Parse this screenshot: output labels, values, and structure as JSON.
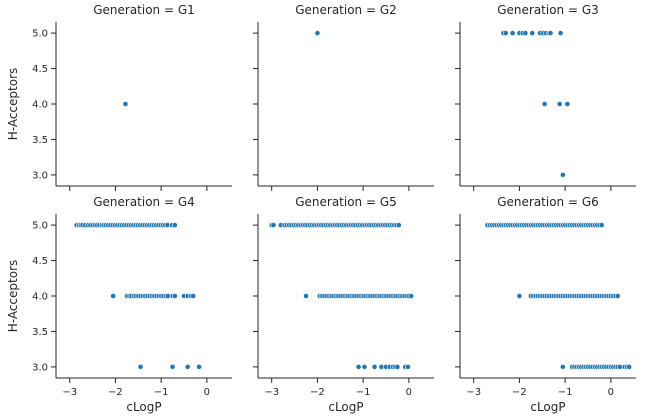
{
  "chart_data": {
    "type": "scatter",
    "layout": "facet-grid 2x3",
    "xlabel": "cLogP",
    "ylabel": "H-Acceptors",
    "xlim": [
      -3.3,
      0.55
    ],
    "ylim": [
      2.9,
      5.1
    ],
    "xticks": [
      -3,
      -2,
      -1,
      0
    ],
    "yticks": [
      3.0,
      3.5,
      4.0,
      4.5,
      5.0
    ],
    "xtick_labels": [
      "−3",
      "−2",
      "−1",
      "0"
    ],
    "ytick_labels": [
      "3.0",
      "3.5",
      "4.0",
      "4.5",
      "5.0"
    ],
    "grid": false,
    "marker_color": "#1f77b4",
    "panels": [
      {
        "title": "Generation = G1",
        "points": [
          [
            -1.78,
            4.0
          ]
        ]
      },
      {
        "title": "Generation = G2",
        "points": [
          [
            -2.0,
            5.0
          ]
        ]
      },
      {
        "title": "Generation = G3",
        "points": [
          [
            -2.35,
            5.0
          ],
          [
            -2.3,
            5.0
          ],
          [
            -2.15,
            5.0
          ],
          [
            -2.0,
            5.0
          ],
          [
            -1.93,
            5.0
          ],
          [
            -1.87,
            5.0
          ],
          [
            -1.72,
            5.0
          ],
          [
            -1.55,
            5.0
          ],
          [
            -1.48,
            5.0
          ],
          [
            -1.42,
            5.0
          ],
          [
            -1.35,
            5.0
          ],
          [
            -1.32,
            5.0
          ],
          [
            -1.1,
            5.0
          ],
          [
            -1.45,
            4.0
          ],
          [
            -1.12,
            4.0
          ],
          [
            -0.95,
            4.0
          ],
          [
            -1.05,
            3.0
          ]
        ]
      },
      {
        "title": "Generation = G4",
        "points": [
          [
            -2.85,
            5.0
          ],
          [
            -2.8,
            5.0
          ],
          [
            -2.76,
            5.0
          ],
          [
            -2.72,
            5.0
          ],
          [
            -2.66,
            5.0
          ],
          [
            -2.6,
            5.0
          ],
          [
            -2.55,
            5.0
          ],
          [
            -2.5,
            5.0
          ],
          [
            -2.45,
            5.0
          ],
          [
            -2.4,
            5.0
          ],
          [
            -2.35,
            5.0
          ],
          [
            -2.3,
            5.0
          ],
          [
            -2.26,
            5.0
          ],
          [
            -2.21,
            5.0
          ],
          [
            -2.16,
            5.0
          ],
          [
            -2.11,
            5.0
          ],
          [
            -2.06,
            5.0
          ],
          [
            -2.01,
            5.0
          ],
          [
            -1.96,
            5.0
          ],
          [
            -1.91,
            5.0
          ],
          [
            -1.86,
            5.0
          ],
          [
            -1.81,
            5.0
          ],
          [
            -1.76,
            5.0
          ],
          [
            -1.71,
            5.0
          ],
          [
            -1.66,
            5.0
          ],
          [
            -1.61,
            5.0
          ],
          [
            -1.56,
            5.0
          ],
          [
            -1.51,
            5.0
          ],
          [
            -1.46,
            5.0
          ],
          [
            -1.41,
            5.0
          ],
          [
            -1.36,
            5.0
          ],
          [
            -1.31,
            5.0
          ],
          [
            -1.26,
            5.0
          ],
          [
            -1.21,
            5.0
          ],
          [
            -1.16,
            5.0
          ],
          [
            -1.11,
            5.0
          ],
          [
            -1.06,
            5.0
          ],
          [
            -1.01,
            5.0
          ],
          [
            -0.96,
            5.0
          ],
          [
            -0.91,
            5.0
          ],
          [
            -0.86,
            5.0
          ],
          [
            -0.76,
            5.0
          ],
          [
            -0.7,
            5.0
          ],
          [
            -2.05,
            4.0
          ],
          [
            -1.75,
            4.0
          ],
          [
            -1.7,
            4.0
          ],
          [
            -1.66,
            4.0
          ],
          [
            -1.6,
            4.0
          ],
          [
            -1.55,
            4.0
          ],
          [
            -1.5,
            4.0
          ],
          [
            -1.45,
            4.0
          ],
          [
            -1.4,
            4.0
          ],
          [
            -1.35,
            4.0
          ],
          [
            -1.3,
            4.0
          ],
          [
            -1.25,
            4.0
          ],
          [
            -1.2,
            4.0
          ],
          [
            -1.15,
            4.0
          ],
          [
            -1.1,
            4.0
          ],
          [
            -1.05,
            4.0
          ],
          [
            -1.0,
            4.0
          ],
          [
            -0.95,
            4.0
          ],
          [
            -0.9,
            4.0
          ],
          [
            -0.85,
            4.0
          ],
          [
            -0.75,
            4.0
          ],
          [
            -0.7,
            4.0
          ],
          [
            -0.5,
            4.0
          ],
          [
            -0.42,
            4.0
          ],
          [
            -0.35,
            4.0
          ],
          [
            -0.3,
            4.0
          ],
          [
            -1.45,
            3.0
          ],
          [
            -0.75,
            3.0
          ],
          [
            -0.42,
            3.0
          ],
          [
            -0.17,
            3.0
          ]
        ]
      },
      {
        "title": "Generation = G5",
        "points": [
          [
            -3.0,
            5.0
          ],
          [
            -2.96,
            5.0
          ],
          [
            -2.8,
            5.0
          ],
          [
            -2.72,
            5.0
          ],
          [
            -2.67,
            5.0
          ],
          [
            -2.62,
            5.0
          ],
          [
            -2.57,
            5.0
          ],
          [
            -2.52,
            5.0
          ],
          [
            -2.47,
            5.0
          ],
          [
            -2.42,
            5.0
          ],
          [
            -2.37,
            5.0
          ],
          [
            -2.32,
            5.0
          ],
          [
            -2.27,
            5.0
          ],
          [
            -2.22,
            5.0
          ],
          [
            -2.17,
            5.0
          ],
          [
            -2.12,
            5.0
          ],
          [
            -2.07,
            5.0
          ],
          [
            -2.02,
            5.0
          ],
          [
            -1.97,
            5.0
          ],
          [
            -1.92,
            5.0
          ],
          [
            -1.87,
            5.0
          ],
          [
            -1.82,
            5.0
          ],
          [
            -1.77,
            5.0
          ],
          [
            -1.72,
            5.0
          ],
          [
            -1.67,
            5.0
          ],
          [
            -1.62,
            5.0
          ],
          [
            -1.57,
            5.0
          ],
          [
            -1.52,
            5.0
          ],
          [
            -1.47,
            5.0
          ],
          [
            -1.42,
            5.0
          ],
          [
            -1.37,
            5.0
          ],
          [
            -1.32,
            5.0
          ],
          [
            -1.27,
            5.0
          ],
          [
            -1.22,
            5.0
          ],
          [
            -1.17,
            5.0
          ],
          [
            -1.12,
            5.0
          ],
          [
            -1.07,
            5.0
          ],
          [
            -1.02,
            5.0
          ],
          [
            -0.97,
            5.0
          ],
          [
            -0.92,
            5.0
          ],
          [
            -0.87,
            5.0
          ],
          [
            -0.82,
            5.0
          ],
          [
            -0.77,
            5.0
          ],
          [
            -0.72,
            5.0
          ],
          [
            -0.67,
            5.0
          ],
          [
            -0.62,
            5.0
          ],
          [
            -0.57,
            5.0
          ],
          [
            -0.52,
            5.0
          ],
          [
            -0.47,
            5.0
          ],
          [
            -0.42,
            5.0
          ],
          [
            -0.37,
            5.0
          ],
          [
            -0.32,
            5.0
          ],
          [
            -0.27,
            5.0
          ],
          [
            -0.22,
            5.0
          ],
          [
            -2.25,
            4.0
          ],
          [
            -1.95,
            4.0
          ],
          [
            -1.9,
            4.0
          ],
          [
            -1.85,
            4.0
          ],
          [
            -1.8,
            4.0
          ],
          [
            -1.75,
            4.0
          ],
          [
            -1.7,
            4.0
          ],
          [
            -1.65,
            4.0
          ],
          [
            -1.6,
            4.0
          ],
          [
            -1.55,
            4.0
          ],
          [
            -1.5,
            4.0
          ],
          [
            -1.45,
            4.0
          ],
          [
            -1.4,
            4.0
          ],
          [
            -1.35,
            4.0
          ],
          [
            -1.3,
            4.0
          ],
          [
            -1.25,
            4.0
          ],
          [
            -1.2,
            4.0
          ],
          [
            -1.15,
            4.0
          ],
          [
            -1.1,
            4.0
          ],
          [
            -1.05,
            4.0
          ],
          [
            -1.0,
            4.0
          ],
          [
            -0.95,
            4.0
          ],
          [
            -0.9,
            4.0
          ],
          [
            -0.85,
            4.0
          ],
          [
            -0.8,
            4.0
          ],
          [
            -0.75,
            4.0
          ],
          [
            -0.7,
            4.0
          ],
          [
            -0.65,
            4.0
          ],
          [
            -0.6,
            4.0
          ],
          [
            -0.55,
            4.0
          ],
          [
            -0.5,
            4.0
          ],
          [
            -0.45,
            4.0
          ],
          [
            -0.4,
            4.0
          ],
          [
            -0.35,
            4.0
          ],
          [
            -0.3,
            4.0
          ],
          [
            -0.25,
            4.0
          ],
          [
            -0.2,
            4.0
          ],
          [
            -0.15,
            4.0
          ],
          [
            -0.1,
            4.0
          ],
          [
            -0.05,
            4.0
          ],
          [
            0.0,
            4.0
          ],
          [
            0.05,
            4.0
          ],
          [
            -1.1,
            3.0
          ],
          [
            -0.97,
            3.0
          ],
          [
            -0.75,
            3.0
          ],
          [
            -0.6,
            3.0
          ],
          [
            -0.5,
            3.0
          ],
          [
            -0.42,
            3.0
          ],
          [
            -0.35,
            3.0
          ],
          [
            -0.3,
            3.0
          ],
          [
            -0.25,
            3.0
          ],
          [
            -0.08,
            3.0
          ],
          [
            -0.02,
            3.0
          ]
        ]
      },
      {
        "title": "Generation = G6",
        "points": [
          [
            -2.7,
            5.0
          ],
          [
            -2.65,
            5.0
          ],
          [
            -2.6,
            5.0
          ],
          [
            -2.55,
            5.0
          ],
          [
            -2.5,
            5.0
          ],
          [
            -2.45,
            5.0
          ],
          [
            -2.4,
            5.0
          ],
          [
            -2.35,
            5.0
          ],
          [
            -2.3,
            5.0
          ],
          [
            -2.25,
            5.0
          ],
          [
            -2.2,
            5.0
          ],
          [
            -2.15,
            5.0
          ],
          [
            -2.1,
            5.0
          ],
          [
            -2.05,
            5.0
          ],
          [
            -2.0,
            5.0
          ],
          [
            -1.95,
            5.0
          ],
          [
            -1.9,
            5.0
          ],
          [
            -1.85,
            5.0
          ],
          [
            -1.8,
            5.0
          ],
          [
            -1.75,
            5.0
          ],
          [
            -1.7,
            5.0
          ],
          [
            -1.65,
            5.0
          ],
          [
            -1.6,
            5.0
          ],
          [
            -1.55,
            5.0
          ],
          [
            -1.5,
            5.0
          ],
          [
            -1.45,
            5.0
          ],
          [
            -1.4,
            5.0
          ],
          [
            -1.35,
            5.0
          ],
          [
            -1.3,
            5.0
          ],
          [
            -1.25,
            5.0
          ],
          [
            -1.2,
            5.0
          ],
          [
            -1.15,
            5.0
          ],
          [
            -1.1,
            5.0
          ],
          [
            -1.05,
            5.0
          ],
          [
            -1.0,
            5.0
          ],
          [
            -0.95,
            5.0
          ],
          [
            -0.9,
            5.0
          ],
          [
            -0.85,
            5.0
          ],
          [
            -0.8,
            5.0
          ],
          [
            -0.75,
            5.0
          ],
          [
            -0.7,
            5.0
          ],
          [
            -0.65,
            5.0
          ],
          [
            -0.6,
            5.0
          ],
          [
            -0.55,
            5.0
          ],
          [
            -0.5,
            5.0
          ],
          [
            -0.45,
            5.0
          ],
          [
            -0.4,
            5.0
          ],
          [
            -0.35,
            5.0
          ],
          [
            -0.3,
            5.0
          ],
          [
            -0.25,
            5.0
          ],
          [
            -0.2,
            5.0
          ],
          [
            -2.0,
            4.0
          ],
          [
            -1.75,
            4.0
          ],
          [
            -1.7,
            4.0
          ],
          [
            -1.65,
            4.0
          ],
          [
            -1.6,
            4.0
          ],
          [
            -1.55,
            4.0
          ],
          [
            -1.5,
            4.0
          ],
          [
            -1.45,
            4.0
          ],
          [
            -1.4,
            4.0
          ],
          [
            -1.35,
            4.0
          ],
          [
            -1.3,
            4.0
          ],
          [
            -1.25,
            4.0
          ],
          [
            -1.2,
            4.0
          ],
          [
            -1.15,
            4.0
          ],
          [
            -1.1,
            4.0
          ],
          [
            -1.05,
            4.0
          ],
          [
            -1.0,
            4.0
          ],
          [
            -0.95,
            4.0
          ],
          [
            -0.9,
            4.0
          ],
          [
            -0.85,
            4.0
          ],
          [
            -0.8,
            4.0
          ],
          [
            -0.75,
            4.0
          ],
          [
            -0.7,
            4.0
          ],
          [
            -0.65,
            4.0
          ],
          [
            -0.6,
            4.0
          ],
          [
            -0.55,
            4.0
          ],
          [
            -0.5,
            4.0
          ],
          [
            -0.45,
            4.0
          ],
          [
            -0.4,
            4.0
          ],
          [
            -0.35,
            4.0
          ],
          [
            -0.3,
            4.0
          ],
          [
            -0.25,
            4.0
          ],
          [
            -0.2,
            4.0
          ],
          [
            -0.15,
            4.0
          ],
          [
            -0.1,
            4.0
          ],
          [
            -0.05,
            4.0
          ],
          [
            0.0,
            4.0
          ],
          [
            0.05,
            4.0
          ],
          [
            0.1,
            4.0
          ],
          [
            0.15,
            4.0
          ],
          [
            -1.05,
            3.0
          ],
          [
            -0.85,
            3.0
          ],
          [
            -0.8,
            3.0
          ],
          [
            -0.75,
            3.0
          ],
          [
            -0.7,
            3.0
          ],
          [
            -0.65,
            3.0
          ],
          [
            -0.6,
            3.0
          ],
          [
            -0.55,
            3.0
          ],
          [
            -0.5,
            3.0
          ],
          [
            -0.45,
            3.0
          ],
          [
            -0.4,
            3.0
          ],
          [
            -0.35,
            3.0
          ],
          [
            -0.3,
            3.0
          ],
          [
            -0.25,
            3.0
          ],
          [
            -0.2,
            3.0
          ],
          [
            -0.15,
            3.0
          ],
          [
            -0.1,
            3.0
          ],
          [
            -0.05,
            3.0
          ],
          [
            0.0,
            3.0
          ],
          [
            0.05,
            3.0
          ],
          [
            0.1,
            3.0
          ],
          [
            0.15,
            3.0
          ],
          [
            0.2,
            3.0
          ],
          [
            0.3,
            3.0
          ],
          [
            0.35,
            3.0
          ],
          [
            0.4,
            3.0
          ]
        ]
      }
    ]
  }
}
